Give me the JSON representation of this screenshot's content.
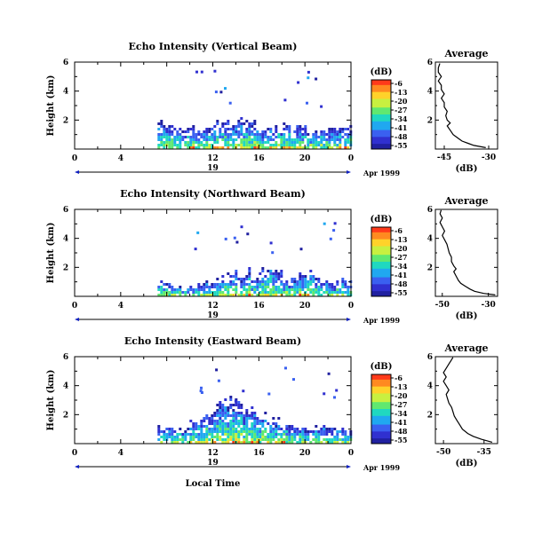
{
  "shared": {
    "date_label": "Apr 1999",
    "day_label": "19",
    "xlabel": "Local Time",
    "ylabel": "Height (km)",
    "colorbar_unit": "(dB)",
    "colorbar_ticks": [
      "-6",
      "-13",
      "-20",
      "-27",
      "-34",
      "-41",
      "-48",
      "-55"
    ],
    "colorscale": [
      "#ff3a1a",
      "#ff8a20",
      "#ffd22a",
      "#c8f040",
      "#60e870",
      "#20d8c0",
      "#20a8f0",
      "#3a60f0",
      "#3030d0",
      "#2020a0"
    ]
  },
  "chart_data": [
    {
      "type": "heatmap",
      "title": "Echo Intensity (Vertical Beam)",
      "xlabel": "Local Time",
      "ylabel": "Height (km)",
      "xlim": [
        0,
        24
      ],
      "ylim": [
        0,
        6
      ],
      "xticks": [
        "0",
        "4",
        "12",
        "16",
        "20",
        "0"
      ],
      "yticks": [
        "6",
        "4",
        "2"
      ],
      "data_start_hour": 7.2,
      "profile_coverage": [
        0.32,
        0.3,
        0.28,
        0.25,
        0.25,
        0.25,
        0.24,
        0.32,
        0.35,
        0.3,
        0.38,
        0.32,
        0.35,
        0.26,
        0.28,
        0.3,
        0.3,
        0.27,
        0.28,
        0.2,
        0.22,
        0.25,
        0.25,
        0.28,
        0.26
      ],
      "colorbar": {
        "unit": "(dB)",
        "ticks": [
          "-6",
          "-13",
          "-20",
          "-27",
          "-34",
          "-41",
          "-48",
          "-55"
        ]
      },
      "profile": {
        "title": "Average",
        "xlabel": "(dB)",
        "xticks": [
          "-45",
          "-30"
        ],
        "yticks": [
          "6",
          "4",
          "2"
        ],
        "xlim": [
          -48,
          -27
        ],
        "ylim": [
          0,
          6
        ],
        "points": [
          [
            -31,
            0.1
          ],
          [
            -35,
            0.25
          ],
          [
            -37,
            0.4
          ],
          [
            -39,
            0.55
          ],
          [
            -40,
            0.7
          ],
          [
            -41,
            0.85
          ],
          [
            -42,
            1.0
          ],
          [
            -43,
            1.3
          ],
          [
            -44,
            1.6
          ],
          [
            -43,
            1.8
          ],
          [
            -44,
            2.0
          ],
          [
            -44.5,
            2.3
          ],
          [
            -44,
            2.6
          ],
          [
            -45,
            2.9
          ],
          [
            -45,
            3.2
          ],
          [
            -46,
            3.5
          ],
          [
            -45,
            3.8
          ],
          [
            -46,
            4.1
          ],
          [
            -46,
            4.4
          ],
          [
            -47,
            4.7
          ],
          [
            -46,
            5.0
          ],
          [
            -47,
            5.3
          ],
          [
            -47,
            5.6
          ],
          [
            -46.5,
            5.9
          ]
        ]
      }
    },
    {
      "type": "heatmap",
      "title": "Echo Intensity (Northward Beam)",
      "xlabel": "Local Time",
      "ylabel": "Height (km)",
      "xlim": [
        0,
        24
      ],
      "ylim": [
        0,
        6
      ],
      "xticks": [
        "0",
        "4",
        "12",
        "16",
        "20",
        "0"
      ],
      "yticks": [
        "6",
        "4",
        "2"
      ],
      "data_start_hour": 7.2,
      "profile_coverage": [
        0.18,
        0.16,
        0.14,
        0.1,
        0.12,
        0.15,
        0.18,
        0.2,
        0.28,
        0.3,
        0.26,
        0.3,
        0.22,
        0.3,
        0.35,
        0.32,
        0.2,
        0.22,
        0.25,
        0.3,
        0.2,
        0.2,
        0.18,
        0.22,
        0.2
      ],
      "colorbar": {
        "unit": "(dB)",
        "ticks": [
          "-6",
          "-13",
          "-20",
          "-27",
          "-34",
          "-41",
          "-48",
          "-55"
        ]
      },
      "profile": {
        "title": "Average",
        "xlabel": "(dB)",
        "xticks": [
          "-50",
          "-30"
        ],
        "yticks": [
          "6",
          "4",
          "2"
        ],
        "xlim": [
          -53,
          -26
        ],
        "ylim": [
          0,
          6
        ],
        "points": [
          [
            -27,
            0.1
          ],
          [
            -32,
            0.2
          ],
          [
            -36,
            0.35
          ],
          [
            -38,
            0.5
          ],
          [
            -40,
            0.7
          ],
          [
            -42,
            0.9
          ],
          [
            -43,
            1.1
          ],
          [
            -44,
            1.4
          ],
          [
            -45,
            1.7
          ],
          [
            -44,
            1.9
          ],
          [
            -45,
            2.1
          ],
          [
            -46,
            2.4
          ],
          [
            -46,
            2.7
          ],
          [
            -47,
            3.0
          ],
          [
            -47.5,
            3.3
          ],
          [
            -48,
            3.6
          ],
          [
            -49,
            3.9
          ],
          [
            -50,
            4.2
          ],
          [
            -49,
            4.5
          ],
          [
            -50,
            4.8
          ],
          [
            -51,
            5.1
          ],
          [
            -50,
            5.4
          ],
          [
            -51,
            5.7
          ],
          [
            -50.5,
            5.95
          ]
        ]
      }
    },
    {
      "type": "heatmap",
      "title": "Echo Intensity (Eastward Beam)",
      "xlabel": "Local Time",
      "ylabel": "Height (km)",
      "xlim": [
        0,
        24
      ],
      "ylim": [
        0,
        6
      ],
      "xticks": [
        "0",
        "4",
        "12",
        "16",
        "20",
        "0"
      ],
      "yticks": [
        "6",
        "4",
        "2"
      ],
      "data_start_hour": 7.2,
      "profile_coverage": [
        0.2,
        0.18,
        0.18,
        0.2,
        0.28,
        0.3,
        0.35,
        0.45,
        0.5,
        0.55,
        0.48,
        0.42,
        0.38,
        0.35,
        0.3,
        0.28,
        0.25,
        0.22,
        0.2,
        0.18,
        0.2,
        0.22,
        0.2,
        0.18,
        0.16
      ],
      "colorbar": {
        "unit": "(dB)",
        "ticks": [
          "-6",
          "-13",
          "-20",
          "-27",
          "-34",
          "-41",
          "-48",
          "-55"
        ]
      },
      "profile": {
        "title": "Average",
        "xlabel": "(dB)",
        "xticks": [
          "-50",
          "-35"
        ],
        "yticks": [
          "6",
          "4",
          "2"
        ],
        "xlim": [
          -53,
          -30
        ],
        "ylim": [
          0,
          6
        ],
        "points": [
          [
            -32,
            0.1
          ],
          [
            -36,
            0.3
          ],
          [
            -39,
            0.5
          ],
          [
            -41,
            0.7
          ],
          [
            -43,
            1.0
          ],
          [
            -44,
            1.3
          ],
          [
            -45,
            1.6
          ],
          [
            -46,
            1.9
          ],
          [
            -46.5,
            2.2
          ],
          [
            -47,
            2.5
          ],
          [
            -48,
            2.8
          ],
          [
            -48.5,
            3.1
          ],
          [
            -49,
            3.4
          ],
          [
            -48,
            3.7
          ],
          [
            -49,
            4.0
          ],
          [
            -50,
            4.3
          ],
          [
            -49,
            4.6
          ],
          [
            -50,
            4.9
          ],
          [
            -49,
            5.2
          ],
          [
            -48,
            5.5
          ],
          [
            -47,
            5.8
          ],
          [
            -46.5,
            5.95
          ]
        ]
      }
    }
  ]
}
